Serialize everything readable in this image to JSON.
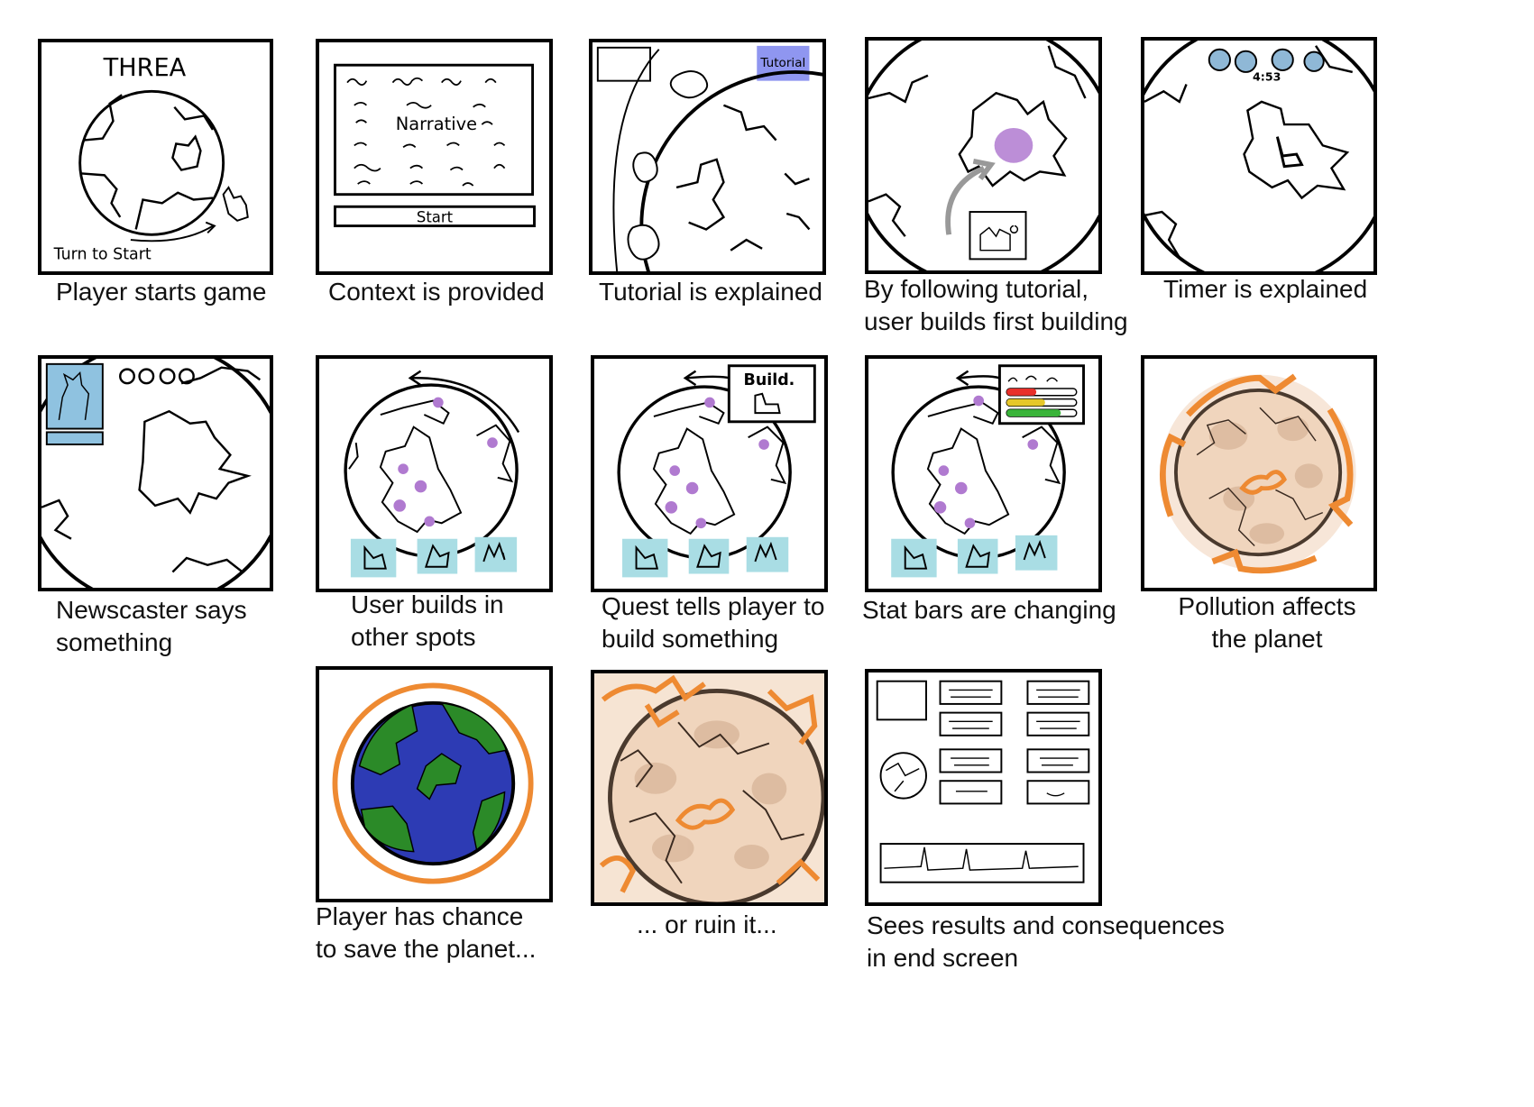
{
  "frames": [
    {
      "caption": "Player starts game",
      "title_text": "THREA",
      "hint_text": "Turn to Start"
    },
    {
      "caption": "Context is provided",
      "body_text": "Narrative",
      "button_text": "Start"
    },
    {
      "caption": "Tutorial is explained",
      "tab_text": "Tutorial"
    },
    {
      "caption": "By following tutorial,\nuser builds first building"
    },
    {
      "caption": "Timer is explained",
      "timer_text": "4:53"
    },
    {
      "caption": "Newscaster says\nsomething"
    },
    {
      "caption": "User builds in\nother spots"
    },
    {
      "caption": "Quest tells player to\nbuild something",
      "quest_text": "Build."
    },
    {
      "caption": "Stat bars are changing"
    },
    {
      "caption": "Pollution affects\nthe planet"
    },
    {
      "caption": "Player has chance\nto save the planet..."
    },
    {
      "caption": "... or ruin it..."
    },
    {
      "caption": "Sees results and consequences\nin end screen"
    }
  ],
  "colors": {
    "ink": "#000000",
    "tutorial_tab": "#8f96f0",
    "timer_dots": "#8fb8d6",
    "building_dot": "#b07ad0",
    "tile_bg": "#a9dde4",
    "pollution_orange": "#ee8a32",
    "pollution_planet": "#f3dcc7",
    "earth_ocean": "#2d3bb4",
    "earth_land": "#2b8a28",
    "stat_red": "#e8302a",
    "stat_yellow": "#e6c72a",
    "stat_green": "#3ab43a"
  }
}
